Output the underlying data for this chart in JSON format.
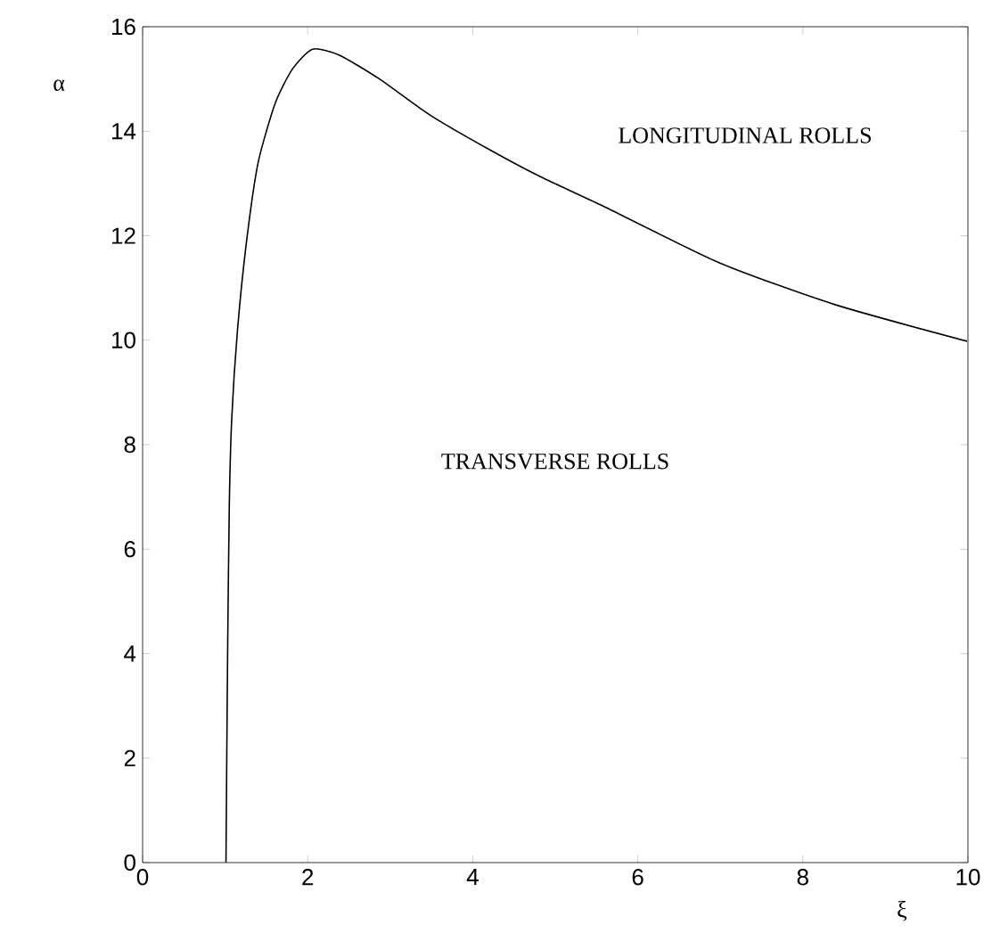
{
  "chart_data": {
    "type": "line",
    "xlabel": "ξ",
    "ylabel": "α",
    "annotations": [
      "LONGITUDINAL ROLLS",
      "TRANSVERSE ROLLS"
    ],
    "series": [
      {
        "color": "#000000",
        "x": [
          1.01,
          1.03,
          1.05,
          1.08,
          1.15,
          1.26,
          1.4,
          1.61,
          1.82,
          2.06,
          2.38,
          2.87,
          3.49,
          4.19,
          4.82,
          5.59,
          6.99,
          8.39,
          9.99
        ],
        "values": [
          0,
          4.0,
          6.8,
          8.5,
          10.2,
          11.9,
          13.4,
          14.55,
          15.2,
          15.57,
          15.46,
          15.0,
          14.3,
          13.66,
          13.13,
          12.56,
          11.48,
          10.68,
          9.98
        ]
      }
    ],
    "xlim": [
      0,
      10
    ],
    "ylim": [
      0,
      16
    ],
    "xticks": [
      0,
      2,
      4,
      6,
      8,
      10
    ],
    "yticks": [
      0,
      2,
      4,
      6,
      8,
      10,
      12,
      14,
      16
    ],
    "grid": false,
    "marker": "none"
  }
}
